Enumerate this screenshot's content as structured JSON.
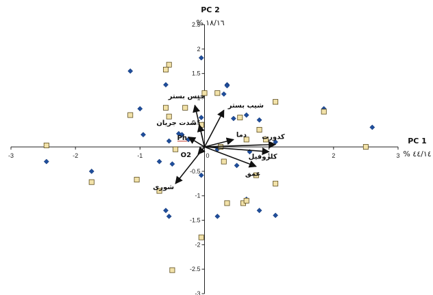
{
  "chart_data": {
    "type": "scatter",
    "title": "",
    "xlabel": "PC 1",
    "ylabel": "PC 2",
    "xlabel_pct": "% ٤٤/١٤",
    "ylabel_pct": "% ١٨/١٦",
    "xlim": [
      -3,
      3
    ],
    "ylim": [
      -3,
      2.5
    ],
    "xticks": [
      "-3",
      "-2",
      "-1",
      "0",
      "1",
      "2",
      "3"
    ],
    "yticks": [
      "2.5",
      "2",
      "1.5",
      "1",
      "0.5",
      "0",
      "-0.5",
      "-1",
      "-1.5",
      "-2",
      "-2.5",
      "-3"
    ],
    "legend": "none",
    "grid": false,
    "series": [
      {
        "marker": "diamond",
        "color": "#1f4e9c",
        "points": [
          [
            -0.05,
            1.82
          ],
          [
            0.35,
            1.27
          ],
          [
            0.35,
            1.25
          ],
          [
            -1.15,
            1.55
          ],
          [
            -0.6,
            1.27
          ],
          [
            0.3,
            1.08
          ],
          [
            -1.0,
            0.78
          ],
          [
            0.45,
            0.58
          ],
          [
            0.65,
            0.65
          ],
          [
            0.85,
            0.55
          ],
          [
            1.85,
            0.78
          ],
          [
            -0.05,
            0.6
          ],
          [
            2.6,
            0.4
          ],
          [
            -0.95,
            0.25
          ],
          [
            -0.4,
            0.27
          ],
          [
            -0.35,
            0.25
          ],
          [
            -0.25,
            0.15
          ],
          [
            -0.55,
            0.12
          ],
          [
            0.2,
            -0.05
          ],
          [
            0.7,
            -0.1
          ],
          [
            -0.7,
            -0.3
          ],
          [
            -0.5,
            -0.35
          ],
          [
            -2.45,
            -0.3
          ],
          [
            -1.75,
            -0.5
          ],
          [
            0.5,
            -0.38
          ],
          [
            -0.05,
            -0.58
          ],
          [
            0.65,
            -1.07
          ],
          [
            0.85,
            -1.3
          ],
          [
            1.1,
            -1.4
          ],
          [
            -0.6,
            -1.3
          ],
          [
            -0.55,
            -1.42
          ],
          [
            0.2,
            -1.42
          ],
          [
            1.1,
            0.1
          ]
        ]
      },
      {
        "marker": "square",
        "color": "#f2e2a9",
        "points": [
          [
            -0.55,
            1.68
          ],
          [
            -0.6,
            1.58
          ],
          [
            0.0,
            1.1
          ],
          [
            0.2,
            1.1
          ],
          [
            1.1,
            0.92
          ],
          [
            -0.6,
            0.8
          ],
          [
            -0.3,
            0.8
          ],
          [
            1.85,
            0.72
          ],
          [
            -1.15,
            0.65
          ],
          [
            -0.55,
            0.62
          ],
          [
            -0.05,
            0.45
          ],
          [
            0.55,
            0.6
          ],
          [
            0.85,
            0.35
          ],
          [
            0.65,
            0.15
          ],
          [
            0.95,
            0.15
          ],
          [
            0.25,
            0.0
          ],
          [
            2.5,
            0.0
          ],
          [
            -2.45,
            0.03
          ],
          [
            -0.45,
            -0.05
          ],
          [
            0.3,
            -0.3
          ],
          [
            -1.75,
            -0.72
          ],
          [
            -1.05,
            -0.67
          ],
          [
            -0.7,
            -0.9
          ],
          [
            0.8,
            -0.58
          ],
          [
            1.1,
            -0.75
          ],
          [
            0.35,
            -1.15
          ],
          [
            0.6,
            -1.15
          ],
          [
            0.65,
            -1.1
          ],
          [
            -0.05,
            -1.85
          ],
          [
            -0.5,
            -2.52
          ]
        ]
      }
    ],
    "vectors": [
      {
        "label": "جنس بستر",
        "x": -0.15,
        "y": 0.85
      },
      {
        "label": "شیب بستر",
        "x": 0.3,
        "y": 0.75
      },
      {
        "label": "شدت جریان",
        "x": -0.08,
        "y": 0.45
      },
      {
        "label": "Ph",
        "x": -0.25,
        "y": 0.2
      },
      {
        "label": "دما",
        "x": 0.45,
        "y": 0.15
      },
      {
        "label": "کدورت",
        "x": 1.1,
        "y": 0.05
      },
      {
        "label": "کلروفیل",
        "x": 1.0,
        "y": -0.1
      },
      {
        "label": "عمق",
        "x": 0.8,
        "y": -0.4
      },
      {
        "label": "O2",
        "x": -0.1,
        "y": -0.15
      },
      {
        "label": "شوری",
        "x": -0.45,
        "y": -0.75
      }
    ]
  }
}
